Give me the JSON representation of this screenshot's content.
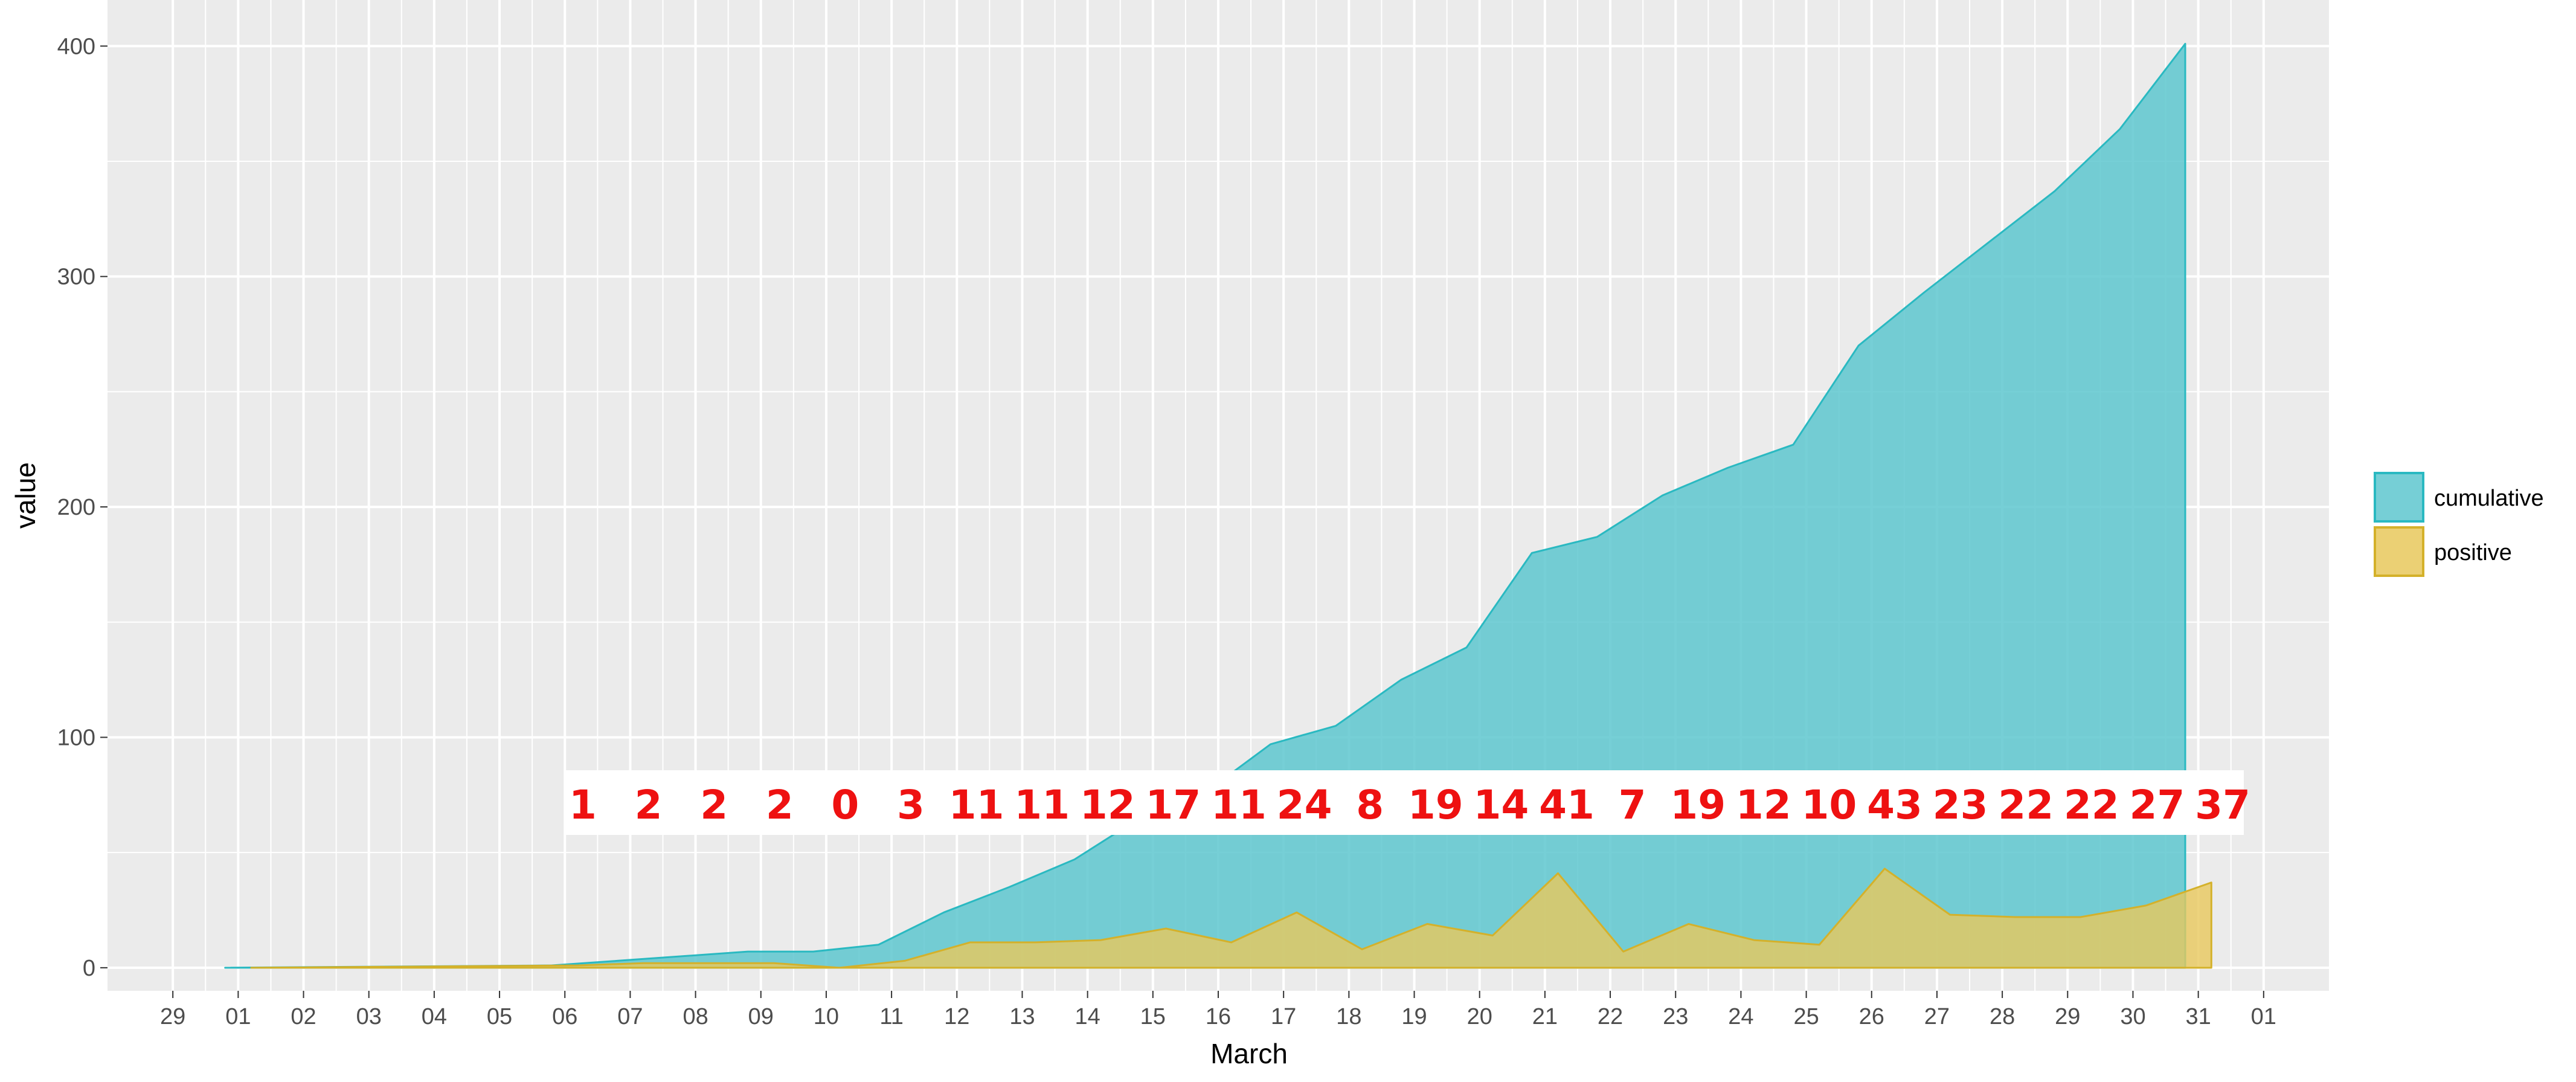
{
  "chart_data": {
    "type": "area",
    "x_axis": {
      "label": "March",
      "tick_labels": [
        "29",
        "01",
        "02",
        "03",
        "04",
        "05",
        "06",
        "07",
        "08",
        "09",
        "10",
        "11",
        "12",
        "13",
        "14",
        "15",
        "16",
        "17",
        "18",
        "19",
        "20",
        "21",
        "22",
        "23",
        "24",
        "25",
        "26",
        "27",
        "28",
        "29",
        "30",
        "31",
        "01"
      ],
      "range": [
        "Feb 28",
        "Apr 02"
      ]
    },
    "y_axis": {
      "label": "value",
      "ticks": [
        0,
        100,
        200,
        300,
        400
      ],
      "range": [
        -10,
        420
      ]
    },
    "grid": true,
    "legend": {
      "placement": "right",
      "entries": [
        "cumulative",
        "positive"
      ]
    },
    "colors": {
      "cumulative": "#5ec7cf",
      "cumulative_outline": "#2ab9c1",
      "positive": "#e8c85c",
      "positive_outline": "#d4b12a",
      "panel": "#ebebeb",
      "grid": "#ffffff",
      "labels": "#ee1111"
    },
    "series": [
      {
        "name": "cumulative",
        "x": [
          "Mar 01",
          "Mar 06",
          "Mar 07",
          "Mar 08",
          "Mar 09",
          "Mar 10",
          "Mar 11",
          "Mar 12",
          "Mar 13",
          "Mar 14",
          "Mar 15",
          "Mar 16",
          "Mar 17",
          "Mar 18",
          "Mar 19",
          "Mar 20",
          "Mar 21",
          "Mar 22",
          "Mar 23",
          "Mar 24",
          "Mar 25",
          "Mar 26",
          "Mar 27",
          "Mar 28",
          "Mar 29",
          "Mar 30",
          "Mar 31"
        ],
        "values": [
          0,
          1,
          3,
          5,
          7,
          7,
          10,
          24,
          35,
          47,
          65,
          76,
          97,
          105,
          125,
          139,
          180,
          187,
          205,
          217,
          227,
          270,
          293,
          315,
          337,
          364,
          401
        ]
      },
      {
        "name": "positive",
        "x": [
          "Mar 01",
          "Mar 06",
          "Mar 07",
          "Mar 08",
          "Mar 09",
          "Mar 10",
          "Mar 11",
          "Mar 12",
          "Mar 13",
          "Mar 14",
          "Mar 15",
          "Mar 16",
          "Mar 17",
          "Mar 18",
          "Mar 19",
          "Mar 20",
          "Mar 21",
          "Mar 22",
          "Mar 23",
          "Mar 24",
          "Mar 25",
          "Mar 26",
          "Mar 27",
          "Mar 28",
          "Mar 29",
          "Mar 30",
          "Mar 31"
        ],
        "values": [
          0,
          1,
          2,
          2,
          2,
          0,
          3,
          11,
          11,
          12,
          17,
          11,
          24,
          8,
          19,
          14,
          41,
          7,
          19,
          12,
          10,
          43,
          23,
          22,
          22,
          27,
          37
        ]
      }
    ],
    "annotations": [
      "1",
      "2",
      "2",
      "2",
      "0",
      "3",
      "11",
      "11",
      "12",
      "17",
      "11",
      "24",
      "8",
      "19",
      "14",
      "41",
      "7",
      "19",
      "12",
      "10",
      "43",
      "23",
      "22",
      "22",
      "27",
      "37"
    ]
  }
}
